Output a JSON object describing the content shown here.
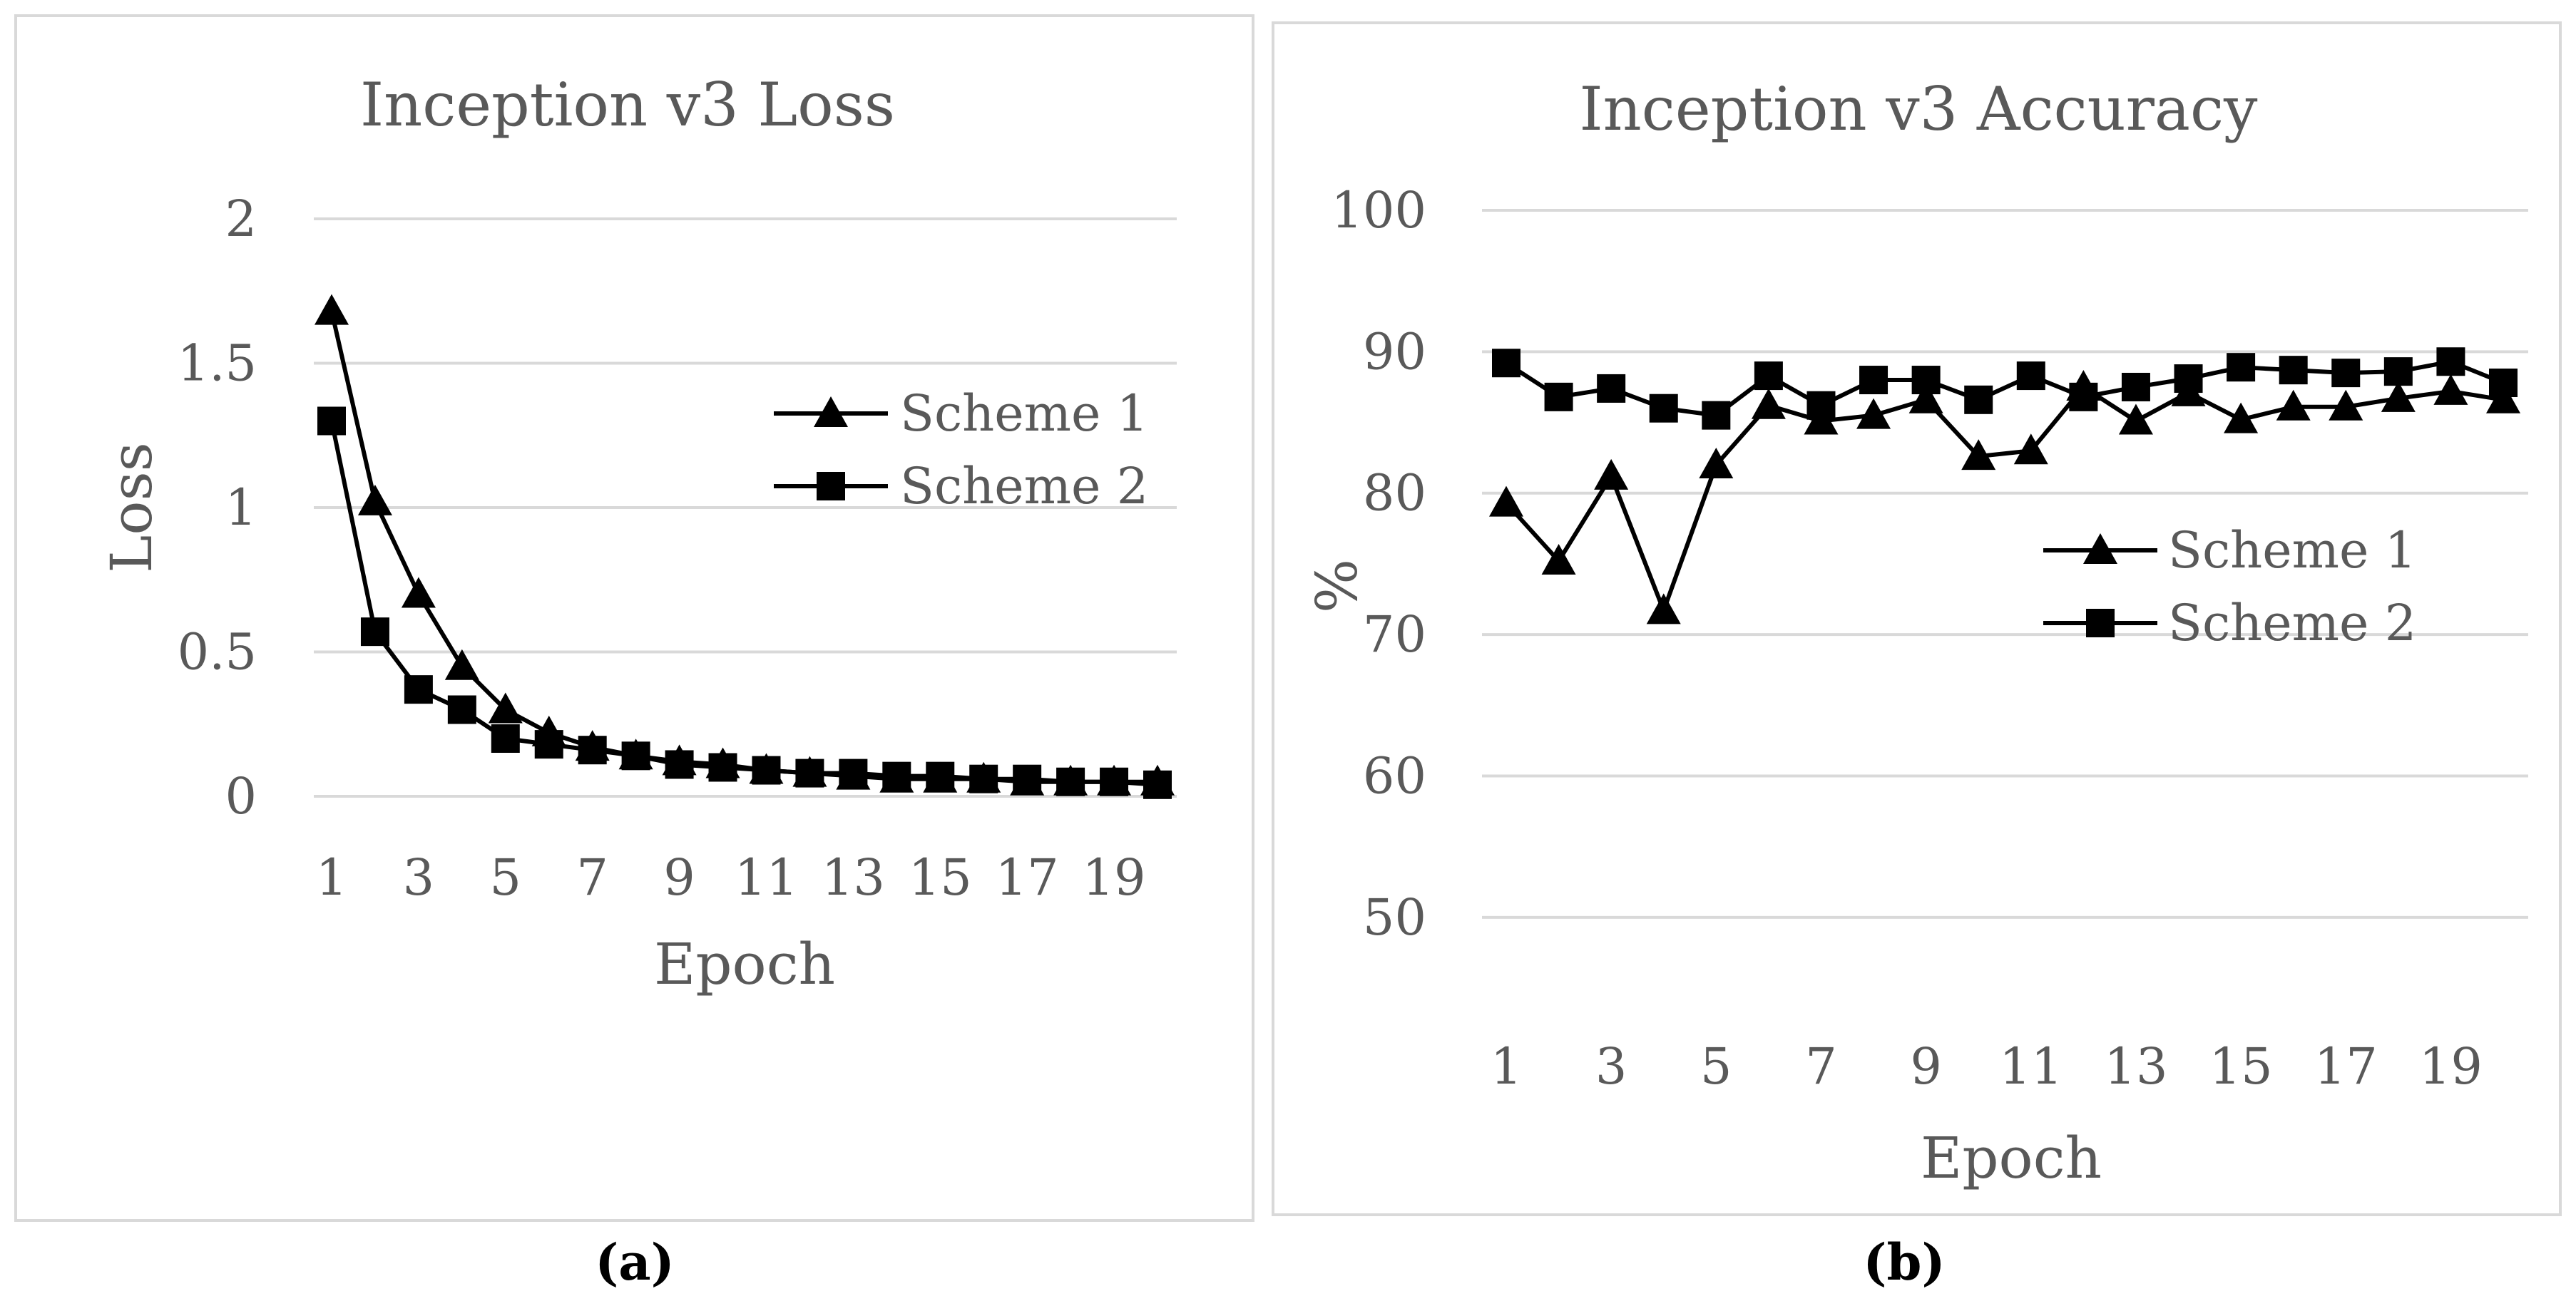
{
  "colors": {
    "series": "#000000",
    "grid": "#d9d9d9",
    "text": "#595959",
    "frame": "#d9d9d9"
  },
  "chart_data": [
    {
      "type": "line",
      "title": "Inception v3 Loss",
      "xlabel": "Epoch",
      "ylabel": "Loss",
      "caption": "(a)",
      "x": [
        1,
        2,
        3,
        4,
        5,
        6,
        7,
        8,
        9,
        10,
        11,
        12,
        13,
        14,
        15,
        16,
        17,
        18,
        19,
        20
      ],
      "x_tick_labels": [
        "1",
        "3",
        "5",
        "7",
        "9",
        "11",
        "13",
        "15",
        "17",
        "19"
      ],
      "ylim": [
        0,
        2
      ],
      "y_ticks": [
        0,
        0.5,
        1,
        1.5,
        2
      ],
      "y_tick_labels": [
        "0",
        "0.5",
        "1",
        "1.5",
        "2"
      ],
      "grid": true,
      "legend_position": "right",
      "series": [
        {
          "name": "Scheme 1",
          "marker": "triangle",
          "values": [
            1.68,
            1.02,
            0.7,
            0.45,
            0.3,
            0.22,
            0.17,
            0.14,
            0.12,
            0.11,
            0.09,
            0.08,
            0.07,
            0.06,
            0.06,
            0.06,
            0.05,
            0.05,
            0.05,
            0.05
          ]
        },
        {
          "name": "Scheme 2",
          "marker": "square",
          "values": [
            1.3,
            0.57,
            0.37,
            0.3,
            0.2,
            0.18,
            0.16,
            0.14,
            0.11,
            0.1,
            0.09,
            0.08,
            0.08,
            0.07,
            0.07,
            0.06,
            0.06,
            0.05,
            0.05,
            0.04
          ]
        }
      ]
    },
    {
      "type": "line",
      "title": "Inception v3 Accuracy",
      "xlabel": "Epoch",
      "ylabel": "%",
      "caption": "(b)",
      "x": [
        1,
        2,
        3,
        4,
        5,
        6,
        7,
        8,
        9,
        10,
        11,
        12,
        13,
        14,
        15,
        16,
        17,
        18,
        19,
        20
      ],
      "x_tick_labels": [
        "1",
        "3",
        "5",
        "7",
        "9",
        "11",
        "13",
        "15",
        "17",
        "19"
      ],
      "ylim": [
        45,
        100
      ],
      "y_ticks": [
        50,
        60,
        70,
        80,
        90,
        100
      ],
      "y_tick_labels": [
        "50",
        "60",
        "70",
        "80",
        "90",
        "100"
      ],
      "grid": true,
      "legend_position": "right",
      "series": [
        {
          "name": "Scheme 1",
          "marker": "triangle",
          "values": [
            79.3,
            75.2,
            81.2,
            71.7,
            82.0,
            86.2,
            85.1,
            85.5,
            86.6,
            82.6,
            83.0,
            87.5,
            85.1,
            87.1,
            85.2,
            86.1,
            86.1,
            86.7,
            87.2,
            86.6
          ]
        },
        {
          "name": "Scheme 2",
          "marker": "square",
          "values": [
            89.2,
            86.8,
            87.4,
            86.0,
            85.5,
            88.3,
            86.2,
            88.0,
            88.0,
            86.6,
            88.3,
            86.8,
            87.5,
            88.1,
            88.9,
            88.7,
            88.5,
            88.6,
            89.3,
            87.8
          ]
        }
      ]
    }
  ]
}
